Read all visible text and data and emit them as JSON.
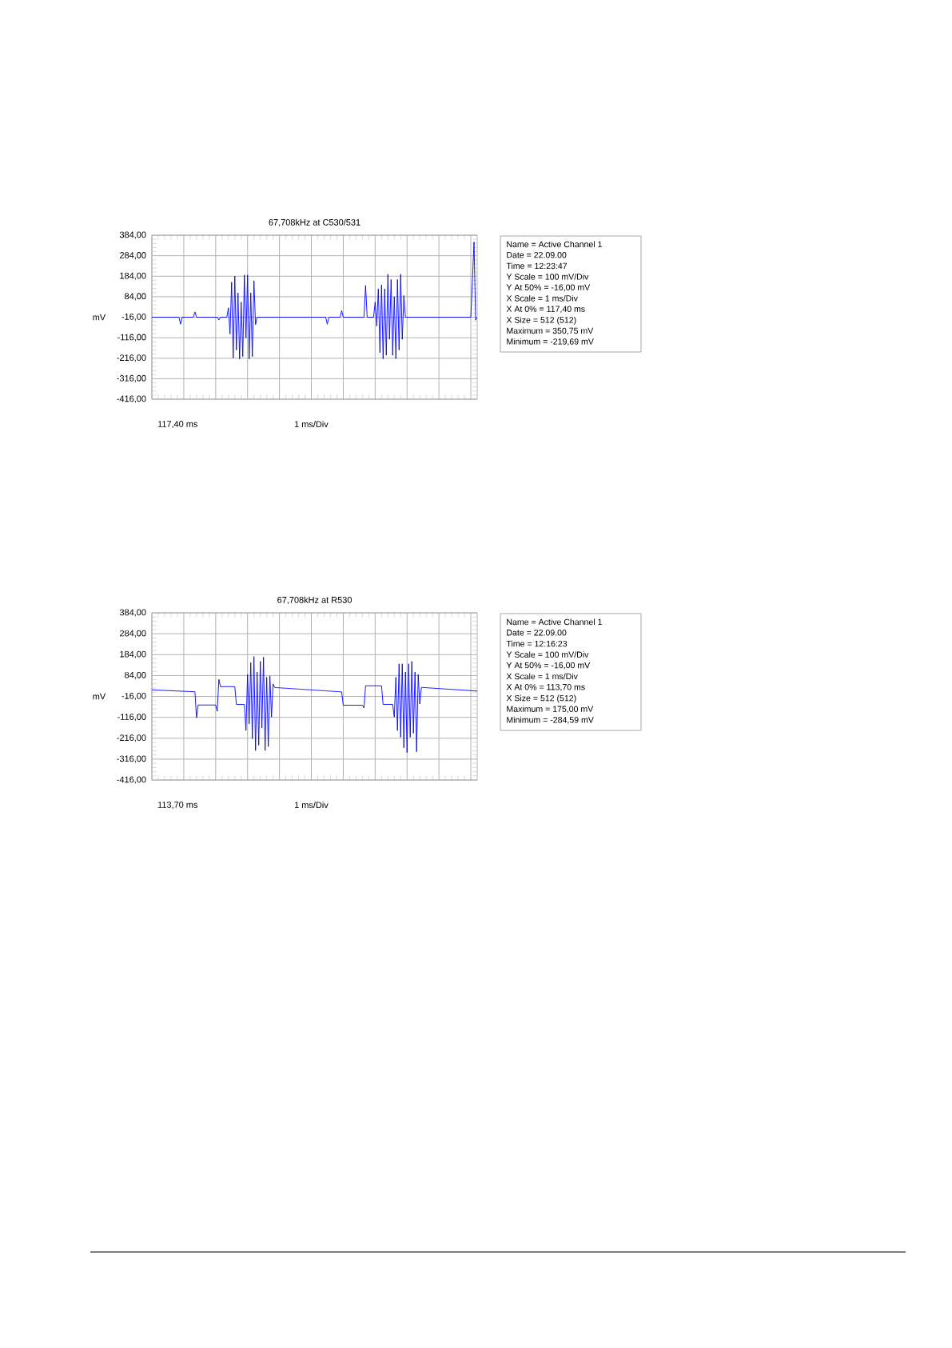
{
  "chart_data": [
    {
      "type": "line",
      "title": "67,708kHz at C530/531",
      "ylabel": "mV",
      "color": "#0000ff",
      "grid": true,
      "tick_labels": "y",
      "annotations": [
        "117,40 ms",
        "1 ms/Div"
      ],
      "ylim": [
        -416,
        384
      ],
      "yticks": [
        {
          "value": 384,
          "label": "384,00"
        },
        {
          "value": 284,
          "label": "284,00"
        },
        {
          "value": 184,
          "label": "184,00"
        },
        {
          "value": 84,
          "label": "84,00"
        },
        {
          "value": -16,
          "label": "-16,00"
        },
        {
          "value": -116,
          "label": "-116,00"
        },
        {
          "value": -216,
          "label": "-216,00"
        },
        {
          "value": -316,
          "label": "-316,00"
        },
        {
          "value": -416,
          "label": "-416,00"
        }
      ],
      "categories": [
        null,
        null,
        null,
        null,
        null,
        null,
        null,
        null,
        null,
        null,
        null,
        null,
        null,
        null,
        null,
        null,
        null,
        null,
        null,
        null,
        null,
        null,
        null,
        null,
        null,
        null,
        null,
        null,
        null,
        null,
        null,
        null,
        null,
        null,
        null,
        null,
        null,
        null,
        null,
        null,
        null,
        null,
        null,
        null,
        null,
        null,
        null,
        null,
        null,
        null,
        null,
        null,
        null,
        null,
        null,
        null,
        null,
        null,
        null,
        null,
        null,
        null,
        null,
        null,
        null,
        null,
        null,
        null,
        null,
        null,
        null,
        null,
        null,
        null,
        null,
        null,
        null,
        null,
        null,
        null,
        null,
        null,
        null,
        null,
        null,
        null,
        null,
        null,
        null,
        null,
        null,
        null,
        null,
        null,
        null,
        null,
        null,
        null,
        null,
        null,
        null,
        null,
        null,
        null,
        null,
        null,
        null,
        null,
        null,
        null,
        null,
        null,
        null,
        null,
        null,
        null,
        null,
        null,
        null,
        null,
        null,
        null,
        null,
        null,
        null,
        null,
        null,
        null,
        null,
        null,
        null,
        null,
        null,
        null,
        null,
        null,
        null,
        null,
        null,
        null,
        null,
        null,
        null,
        null,
        null,
        null,
        null,
        null,
        null,
        null,
        null,
        null,
        null,
        null,
        null,
        null,
        null,
        null,
        null,
        null,
        null,
        null,
        null,
        null,
        null,
        null,
        null,
        null,
        null,
        null,
        null,
        null,
        null,
        null,
        null,
        null,
        null,
        null,
        null,
        null,
        null,
        null,
        null,
        null,
        null,
        null,
        null,
        null,
        null,
        null,
        null,
        null,
        null,
        null,
        null,
        null,
        null,
        null,
        null,
        null,
        null,
        null,
        null,
        null,
        null
      ],
      "values": [
        -16,
        -16,
        -16,
        -16,
        -16,
        -16,
        -16,
        -16,
        -16,
        -16,
        -16,
        -16,
        -16,
        -16,
        -16,
        -16,
        -16,
        -16,
        -50,
        -16,
        -16,
        -16,
        -16,
        -16,
        -16,
        -16,
        -16,
        10,
        -16,
        -16,
        -16,
        -16,
        -16,
        -16,
        -16,
        -16,
        -16,
        -16,
        -16,
        -16,
        -16,
        -16,
        -30,
        -16,
        -16,
        -16,
        -16,
        -16,
        30,
        -98,
        155,
        -215,
        185,
        -176,
        103,
        -219.69,
        58,
        -208,
        190,
        -117,
        190,
        -219,
        103,
        -208,
        162,
        -52,
        -16,
        -16,
        -16,
        -16,
        -16,
        -16,
        -16,
        -16,
        -16,
        -16,
        -16,
        -16,
        -16,
        -16,
        -16,
        -16,
        -16,
        -16,
        -16,
        -16,
        -16,
        -16,
        -16,
        -16,
        -16,
        -16,
        -16,
        -16,
        -16,
        -16,
        -16,
        -16,
        -16,
        -16,
        -16,
        -16,
        -16,
        -16,
        -16,
        -16,
        -16,
        -16,
        -16,
        -16,
        -50,
        -16,
        -16,
        -16,
        -16,
        -16,
        -16,
        -16,
        -16,
        16,
        -16,
        -16,
        -16,
        -16,
        -16,
        -16,
        -16,
        -16,
        -16,
        -16,
        -16,
        -16,
        -16,
        -16,
        139,
        -16,
        -16,
        -16,
        -16,
        -16,
        58,
        -59,
        123,
        -189,
        142,
        -219,
        123,
        -202,
        194,
        -124,
        168,
        -202,
        84,
        -218,
        168,
        -176,
        194,
        -124,
        90,
        -16,
        -16,
        -16,
        -16,
        -16,
        -16,
        -16,
        -16,
        -16,
        -16,
        -16,
        -16,
        -16,
        -16,
        -16,
        -16,
        -16,
        -16,
        -16,
        -16,
        -16,
        -16,
        -16,
        -16,
        -16,
        -16,
        -16,
        -16,
        -16,
        -16,
        -16,
        -16,
        -16,
        -16,
        -16,
        -16,
        -16,
        -16,
        -16,
        -16,
        -16,
        -16,
        166,
        350.75,
        -30,
        -16
      ]
    },
    {
      "type": "other",
      "annotations": [
        "Name = Active Channel 1",
        "Date = 22.09.00",
        "Time = 12:23:47",
        "Y Scale = 100 mV/Div",
        "Y At 50% = -16,00 mV",
        "X Scale = 1 ms/Div",
        "X At 0% = 117,40 ms",
        "X Size = 512 (512)",
        "Maximum = 350,75 mV",
        "Minimum = -219,69 mV"
      ]
    },
    {
      "type": "line",
      "title": "67,708kHz at R530",
      "ylabel": "mV",
      "color": "#0000ff",
      "grid": true,
      "tick_labels": "y",
      "annotations": [
        "113,70 ms",
        "1 ms/Div"
      ],
      "ylim": [
        -416,
        384
      ],
      "yticks": [
        {
          "value": 384,
          "label": "384,00"
        },
        {
          "value": 284,
          "label": "284,00"
        },
        {
          "value": 184,
          "label": "184,00"
        },
        {
          "value": 84,
          "label": "84,00"
        },
        {
          "value": -16,
          "label": "-16,00"
        },
        {
          "value": -116,
          "label": "-116,00"
        },
        {
          "value": -216,
          "label": "-216,00"
        },
        {
          "value": -316,
          "label": "-316,00"
        },
        {
          "value": -416,
          "label": "-416,00"
        }
      ],
      "categories": [
        null,
        null,
        null,
        null,
        null,
        null,
        null,
        null,
        null,
        null,
        null,
        null,
        null,
        null,
        null,
        null,
        null,
        null,
        null,
        null,
        null,
        null,
        null,
        null,
        null,
        null,
        null,
        null,
        null,
        null,
        null,
        null,
        null,
        null,
        null,
        null,
        null,
        null,
        null,
        null,
        null,
        null,
        null,
        null,
        null,
        null,
        null,
        null,
        null,
        null,
        null,
        null,
        null,
        null,
        null,
        null,
        null,
        null,
        null,
        null,
        null,
        null,
        null,
        null,
        null,
        null,
        null,
        null,
        null,
        null,
        null,
        null,
        null,
        null,
        null,
        null,
        null,
        null,
        null,
        null,
        null,
        null,
        null,
        null,
        null,
        null,
        null,
        null,
        null,
        null,
        null,
        null,
        null,
        null,
        null,
        null,
        null,
        null,
        null,
        null,
        null,
        null,
        null,
        null,
        null,
        null,
        null,
        null,
        null,
        null,
        null,
        null,
        null,
        null,
        null,
        null,
        null,
        null,
        null,
        null,
        null,
        null,
        null,
        null,
        null,
        null,
        null,
        null,
        null,
        null,
        null,
        null,
        null,
        null,
        null,
        null,
        null,
        null,
        null,
        null,
        null,
        null,
        null,
        null,
        null,
        null,
        null,
        null,
        null,
        null,
        null,
        null,
        null,
        null,
        null,
        null,
        null,
        null,
        null,
        null,
        null,
        null,
        null,
        null,
        null,
        null,
        null,
        null,
        null,
        null,
        null,
        null,
        null,
        null,
        null,
        null,
        null,
        null,
        null,
        null,
        null,
        null,
        null,
        null,
        null,
        null,
        null,
        null,
        null,
        null,
        null,
        null,
        null,
        null,
        null,
        null,
        null,
        null,
        null,
        null,
        null,
        null,
        null,
        null,
        null
      ],
      "values": [
        15,
        15,
        15,
        14,
        14,
        14,
        13,
        13,
        13,
        12,
        12,
        12,
        11,
        11,
        11,
        10,
        10,
        10,
        9,
        9,
        9,
        8,
        8,
        8,
        7,
        7,
        7,
        6,
        -118,
        -57,
        -57,
        -57,
        -57,
        -57,
        -57,
        -57,
        -57,
        -57,
        -57,
        -57,
        -57,
        -87,
        66,
        31,
        31,
        31,
        31,
        31,
        31,
        31,
        31,
        31,
        31,
        -54,
        -54,
        -54,
        -54,
        -54,
        -54,
        -179,
        89,
        -147,
        146,
        -218,
        175,
        -275,
        101,
        -249,
        152,
        -167,
        172,
        -275,
        76,
        -256,
        82,
        -115,
        44,
        27,
        26,
        26,
        25,
        25,
        24,
        24,
        23,
        23,
        22,
        22,
        21,
        21,
        20,
        20,
        19,
        19,
        18,
        18,
        17,
        17,
        16,
        16,
        15,
        15,
        14,
        14,
        13,
        13,
        12,
        12,
        11,
        11,
        10,
        10,
        9,
        9,
        8,
        8,
        7,
        7,
        6,
        6,
        -58,
        -58,
        -58,
        -58,
        -58,
        -58,
        -58,
        -58,
        -58,
        -58,
        -58,
        -58,
        -58,
        -71,
        35,
        35,
        35,
        35,
        35,
        35,
        35,
        35,
        35,
        35,
        35,
        -54,
        -54,
        -54,
        -54,
        -54,
        -54,
        -54,
        -115,
        76,
        -179,
        140,
        -211,
        140,
        -262,
        101,
        -284.59,
        140,
        -211,
        152,
        -192,
        101,
        -281,
        89,
        -52,
        27,
        27,
        26,
        26,
        25,
        25,
        24,
        24,
        23,
        23,
        22,
        22,
        21,
        21,
        20,
        20,
        19,
        19,
        18,
        18,
        17,
        17,
        16,
        16,
        15,
        15,
        14,
        14,
        13,
        13,
        12,
        12,
        11,
        11,
        10,
        10
      ]
    },
    {
      "type": "other",
      "annotations": [
        "Name = Active Channel 1",
        "Date = 22.09.00",
        "Time = 12:16:23",
        "Y Scale = 100 mV/Div",
        "Y At 50% = -16,00 mV",
        "X Scale = 1 ms/Div",
        "X At 0% = 113,70 ms",
        "X Size = 512 (512)",
        "Maximum = 175,00 mV",
        "Minimum = -284,59 mV"
      ]
    }
  ]
}
